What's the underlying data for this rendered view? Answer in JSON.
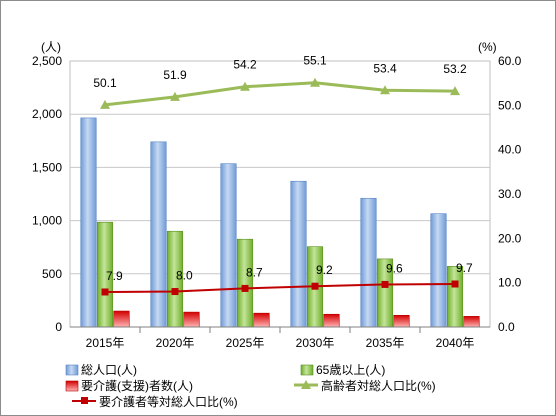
{
  "chart_data": {
    "type": "bar",
    "categories": [
      "2015年",
      "2020年",
      "2025年",
      "2030年",
      "2035年",
      "2040年"
    ],
    "series": [
      {
        "name": "総人口(人)",
        "type": "bar",
        "axis": "left",
        "values": [
          1965,
          1740,
          1535,
          1370,
          1210,
          1065
        ],
        "color": "#8fb4e3"
      },
      {
        "name": "65歳以上(人)",
        "type": "bar",
        "axis": "left",
        "values": [
          985,
          900,
          825,
          755,
          640,
          570
        ],
        "color": "#92d050"
      },
      {
        "name": "要介護(支援)者数(人)",
        "type": "bar",
        "axis": "left",
        "values": [
          150,
          140,
          130,
          120,
          110,
          100
        ],
        "color": "#e02020"
      },
      {
        "name": "高齢者対総人口比(%)",
        "type": "line",
        "axis": "right",
        "values": [
          50.1,
          51.9,
          54.2,
          55.1,
          53.4,
          53.2
        ],
        "color": "#9bbb59"
      },
      {
        "name": "要介護者等対総人口比(%)",
        "type": "line",
        "axis": "right",
        "values": [
          7.9,
          8.0,
          8.7,
          9.2,
          9.6,
          9.7
        ],
        "color": "#c00000"
      }
    ],
    "left_axis": {
      "unit": "(人)",
      "ylim": [
        0,
        2500
      ],
      "ticks": [
        "0",
        "500",
        "1,000",
        "1,500",
        "2,000",
        "2,500"
      ]
    },
    "right_axis": {
      "unit": "(%)",
      "ylim": [
        0,
        60
      ],
      "ticks": [
        "0.0",
        "10.0",
        "20.0",
        "30.0",
        "40.0",
        "50.0",
        "60.0"
      ]
    },
    "data_labels": {
      "elderly_ratio": [
        "50.1",
        "51.9",
        "54.2",
        "55.1",
        "53.4",
        "53.2"
      ],
      "care_ratio": [
        "7.9",
        "8.0",
        "8.7",
        "9.2",
        "9.6",
        "9.7"
      ]
    },
    "legend_position": "bottom",
    "grid": true
  }
}
